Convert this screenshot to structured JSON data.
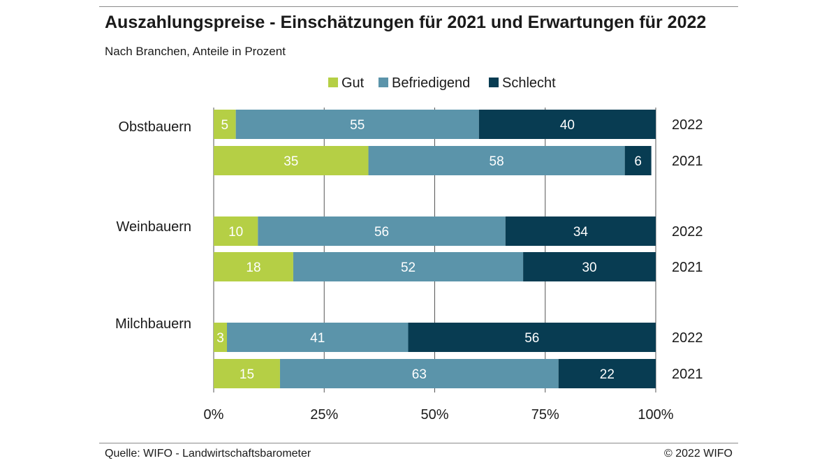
{
  "header": {
    "title": "Auszahlungspreise - Einschätzungen für 2021 und Erwartungen für 2022",
    "subtitle": "Nach Branchen, Anteile in Prozent"
  },
  "footer": {
    "source": "Quelle: WIFO - Landwirtschaftsbarometer",
    "copyright": "© 2022 WIFO"
  },
  "chart_data": {
    "type": "bar",
    "orientation": "horizontal",
    "stacked": true,
    "title": "Auszahlungspreise - Einschätzungen für 2021 und Erwartungen für 2022",
    "subtitle": "Nach Branchen, Anteile in Prozent",
    "xlim": [
      0,
      100
    ],
    "xticks": [
      "0%",
      "25%",
      "50%",
      "75%",
      "100%"
    ],
    "grid": true,
    "legend_position": "top",
    "series": [
      {
        "name": "Gut",
        "color": "#b5cf45",
        "label_color": "#ffffff"
      },
      {
        "name": "Befriedigend",
        "color": "#5b94aa",
        "label_color": "#ffffff"
      },
      {
        "name": "Schlecht",
        "color": "#083c52",
        "label_color": "#ffffff"
      }
    ],
    "groups": [
      {
        "name": "Obstbauern",
        "bars": [
          {
            "year": "2022",
            "values": [
              5,
              55,
              40
            ]
          },
          {
            "year": "2021",
            "values": [
              35,
              58,
              6
            ]
          }
        ]
      },
      {
        "name": "Weinbauern",
        "bars": [
          {
            "year": "2022",
            "values": [
              10,
              56,
              34
            ]
          },
          {
            "year": "2021",
            "values": [
              18,
              52,
              30
            ]
          }
        ]
      },
      {
        "name": "Milchbauern",
        "bars": [
          {
            "year": "2022",
            "values": [
              3,
              41,
              56
            ]
          },
          {
            "year": "2021",
            "values": [
              15,
              63,
              22
            ]
          }
        ]
      }
    ]
  }
}
